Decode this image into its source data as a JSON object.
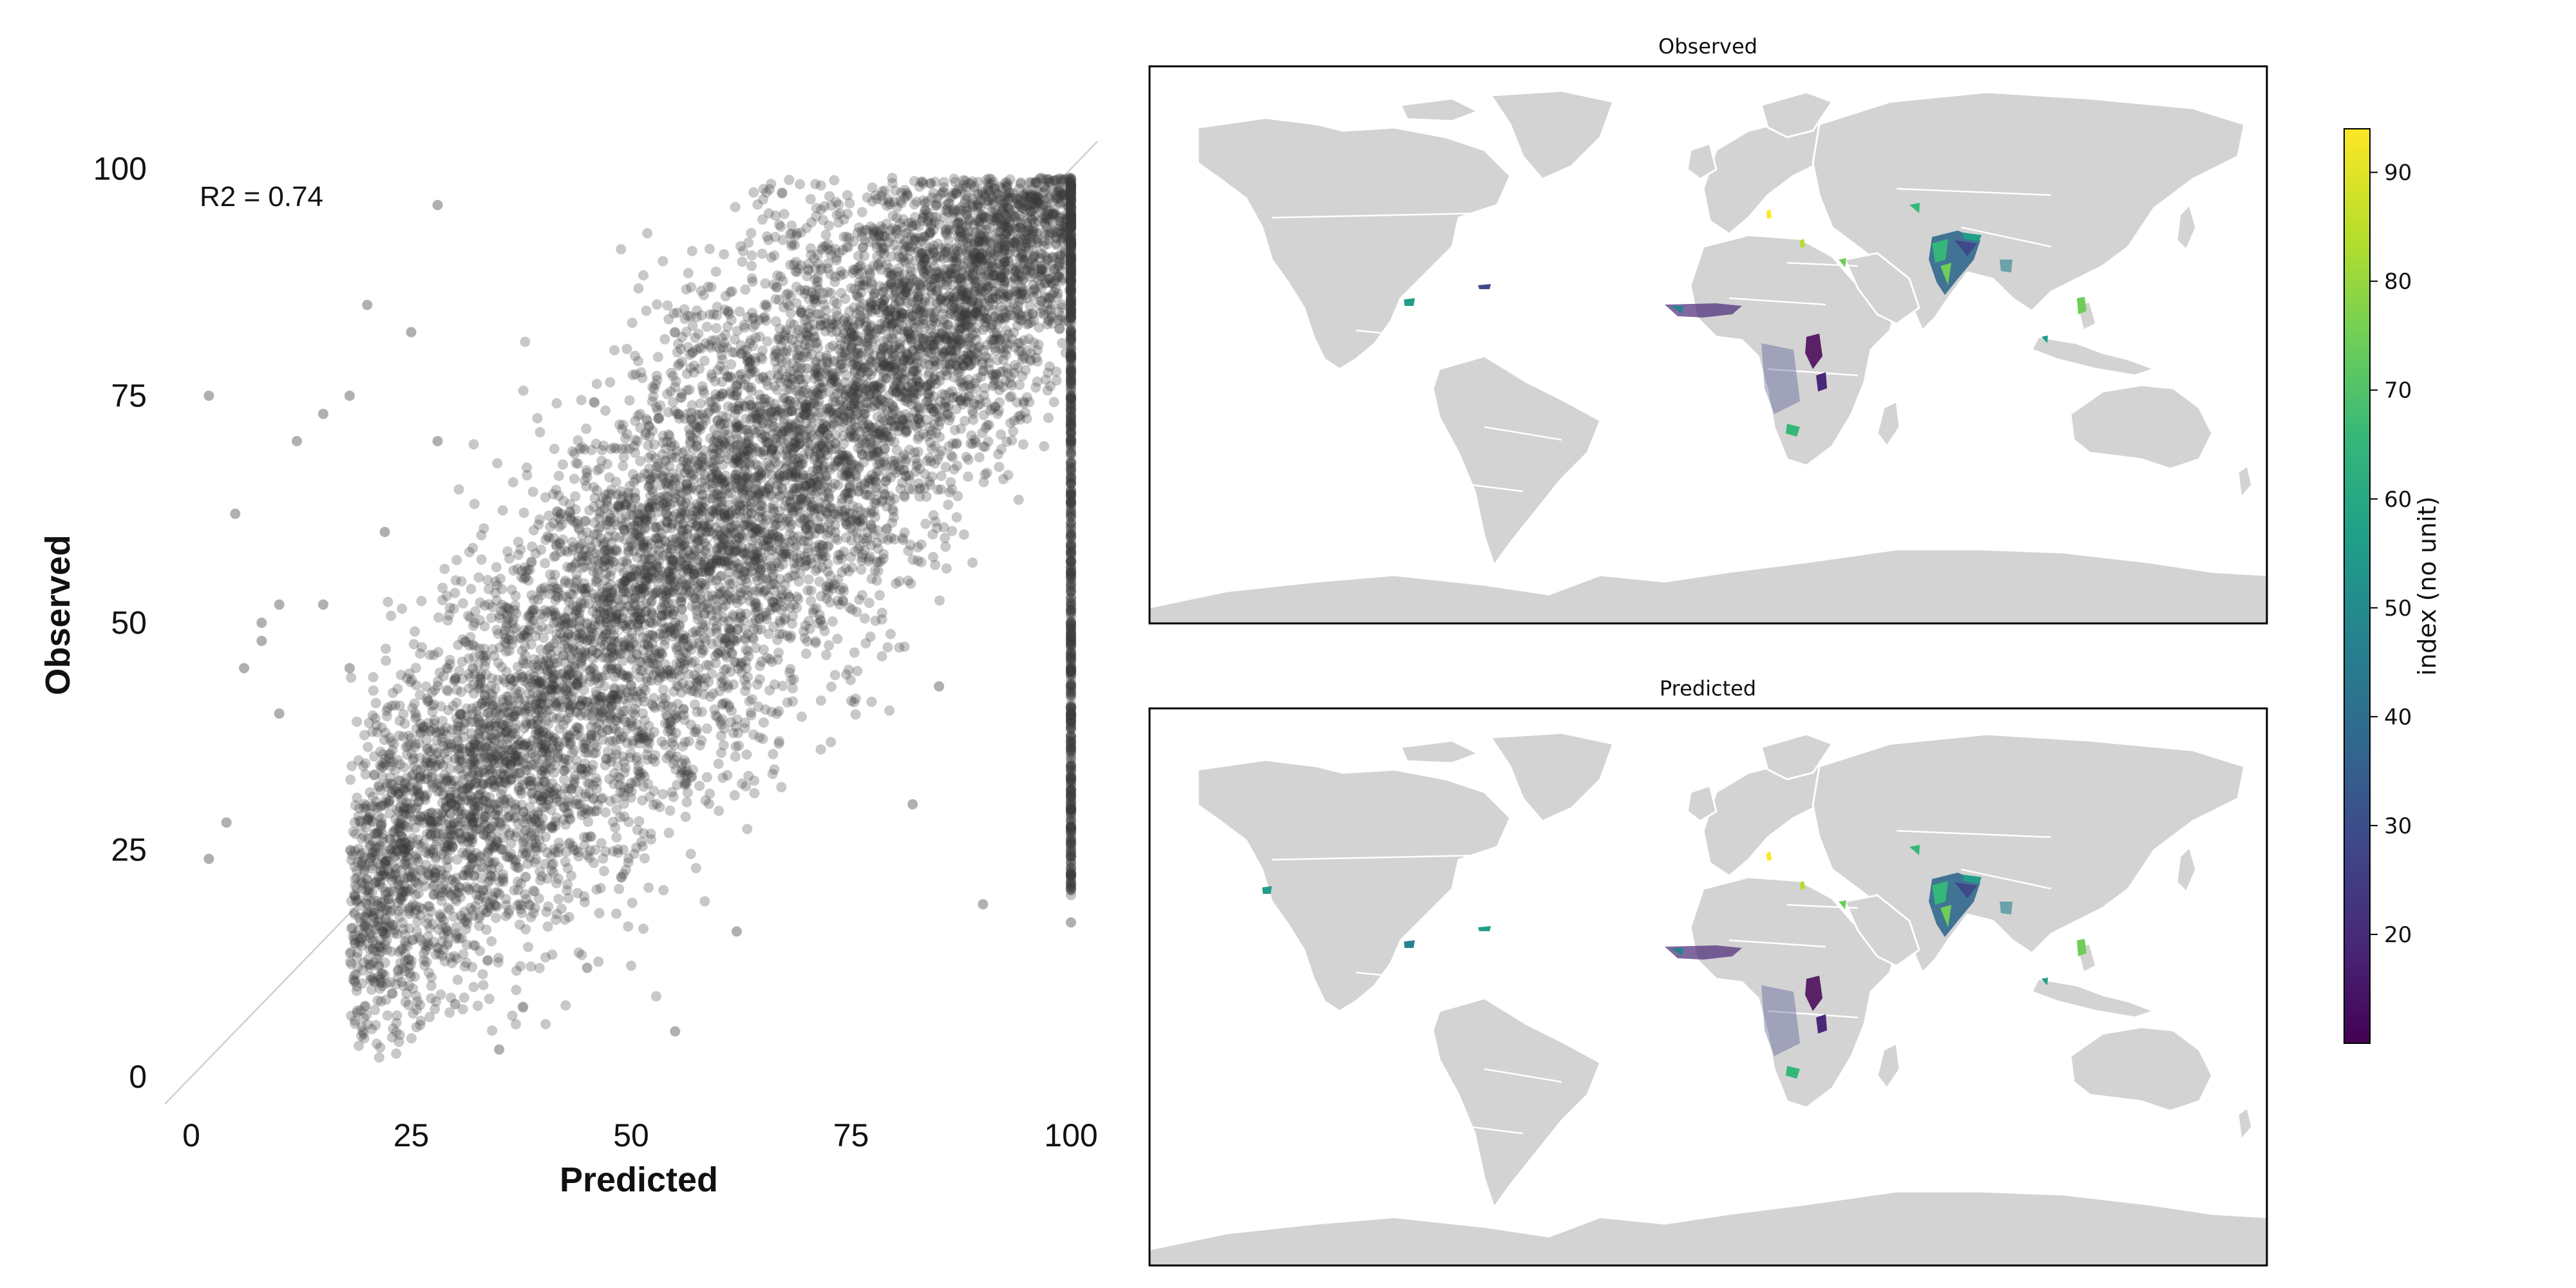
{
  "colors": {
    "points": "#3a3a3a",
    "diagonal": "#cfcfcf",
    "land": "#d3d3d3",
    "viridis": [
      "#440154",
      "#482878",
      "#3e4989",
      "#31688e",
      "#26828e",
      "#1f9e89",
      "#35b779",
      "#6ece58",
      "#b5de2b",
      "#fde725"
    ]
  },
  "scatter": {
    "annotation": "R2 = 0.74",
    "xlabel": "Predicted",
    "ylabel": "Observed"
  },
  "maps": {
    "observed_title": "Observed",
    "predicted_title": "Predicted"
  },
  "colorbar": {
    "label": "index (no unit)",
    "range": [
      10,
      94
    ],
    "ticks": [
      "20",
      "30",
      "40",
      "50",
      "60",
      "70",
      "80",
      "90"
    ]
  },
  "chart_data": [
    {
      "type": "scatter",
      "xlabel": "Predicted",
      "ylabel": "Observed",
      "xlim": [
        0,
        100
      ],
      "ylim": [
        0,
        100
      ],
      "xticks": [
        "0",
        "25",
        "50",
        "75",
        "100"
      ],
      "yticks": [
        "0",
        "25",
        "50",
        "75",
        "100"
      ],
      "annotation": "R2 = 0.74",
      "reference_line": "y = x",
      "r2": 0.74,
      "grid": false,
      "legend": "none",
      "point_color": "#3a3a3a",
      "point_alpha": 0.3,
      "series": [
        {
          "x": [
            2,
            2,
            5,
            8,
            10,
            15,
            18,
            20,
            22,
            25,
            28,
            30,
            32,
            35,
            38,
            40,
            42,
            45,
            48,
            50,
            52,
            55,
            58,
            60,
            62,
            65,
            68,
            70,
            72,
            75,
            78,
            80,
            82,
            85,
            88,
            90,
            92,
            95,
            98,
            100,
            100,
            100,
            100,
            100,
            100,
            90,
            85,
            82,
            62,
            55,
            45,
            38,
            35,
            30,
            28,
            25,
            20,
            18,
            15,
            12,
            10,
            8,
            6,
            4
          ],
          "y": [
            24,
            75,
            62,
            48,
            40,
            52,
            45,
            18,
            60,
            22,
            70,
            35,
            45,
            28,
            55,
            38,
            62,
            48,
            42,
            55,
            65,
            50,
            60,
            68,
            58,
            72,
            64,
            78,
            70,
            82,
            76,
            85,
            80,
            88,
            84,
            92,
            88,
            94,
            95,
            97,
            90,
            82,
            75,
            62,
            17,
            19,
            43,
            30,
            16,
            5,
            12,
            22,
            3,
            8,
            96,
            82,
            85,
            75,
            73,
            70,
            52,
            50,
            45,
            28
          ]
        }
      ]
    },
    {
      "type": "heatmap",
      "title": "Observed",
      "colorbar_label": "index (no unit)",
      "range": [
        10,
        94
      ]
    },
    {
      "type": "heatmap",
      "title": "Predicted",
      "colorbar_label": "index (no unit)",
      "range": [
        10,
        94
      ]
    }
  ]
}
